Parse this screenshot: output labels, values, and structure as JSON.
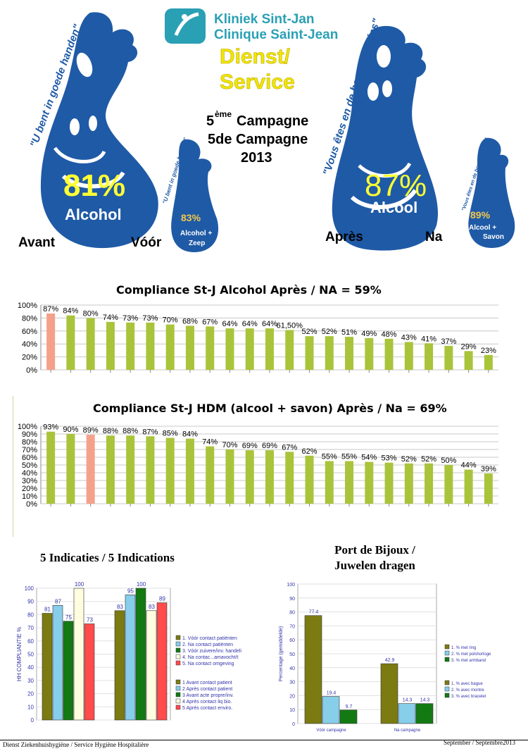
{
  "header": {
    "logo_line1": "Kliniek Sint-Jan",
    "logo_line2": "Clinique Saint-Jean",
    "dienst_line1": "Dienst/",
    "dienst_line2": "Service",
    "campaign_num": "5",
    "campaign_sup": "ème",
    "campaign_line1": "Campagne",
    "campaign_line2": "5de Campagne",
    "campaign_year": "2013"
  },
  "left_drop": {
    "slogan": "\"U bent in goede handen\"",
    "percent": "81%",
    "label": "Alcohol",
    "small_slogan": "\"U bent in goede handen\"",
    "small_percent": "83%",
    "small_label1": "Alcohol +",
    "small_label2": "Zeep",
    "before_fr": "Avant",
    "before_nl": "Vóór"
  },
  "right_drop": {
    "slogan": "\"Vous êtes en de bonnes mains\"",
    "percent": "87%",
    "label": "Alcool",
    "small_slogan": "\"Vous êtes en de bonnes mains\"",
    "small_percent": "89%",
    "small_label1": "Alcool +",
    "small_label2": "Savon",
    "after_fr": "Après",
    "after_nl": "Na"
  },
  "colors": {
    "drop_blue": "#1f5aa6",
    "bar_green": "#a9c43a",
    "bar_salmon": "#f5a08a",
    "yellow_pct": "#ffff33",
    "dienst_yellow": "#f2e600",
    "logo_teal": "#2aa0b5"
  },
  "chart_data": [
    {
      "type": "bar",
      "title": "Compliance St-J Alcohol Après / NA = 59%",
      "values": [
        87,
        84,
        80,
        74,
        73,
        73,
        70,
        68,
        67,
        64,
        64,
        64,
        61.5,
        52,
        52,
        51,
        49,
        48,
        43,
        41,
        37,
        29,
        23
      ],
      "labels": [
        "87%",
        "84%",
        "80%",
        "74%",
        "73%",
        "73%",
        "70%",
        "68%",
        "67%",
        "64%",
        "64%",
        "64%",
        "61,50%",
        "52%",
        "52%",
        "51%",
        "49%",
        "48%",
        "43%",
        "41%",
        "37%",
        "29%",
        "23%"
      ],
      "highlight_index": 0,
      "ylim": [
        0,
        100
      ],
      "yticks": [
        "0%",
        "20%",
        "40%",
        "60%",
        "80%",
        "100%"
      ],
      "grid": true
    },
    {
      "type": "bar",
      "title": "Compliance St-J HDM (alcool + savon) Après / Na = 69%",
      "values": [
        93,
        90,
        89,
        88,
        88,
        87,
        85,
        84,
        74,
        70,
        69,
        69,
        67,
        62,
        55,
        55,
        54,
        53,
        52,
        52,
        50,
        44,
        39
      ],
      "labels": [
        "93%",
        "90%",
        "89%",
        "88%",
        "88%",
        "87%",
        "85%",
        "84%",
        "74%",
        "70%",
        "69%",
        "69%",
        "67%",
        "62%",
        "55%",
        "55%",
        "54%",
        "53%",
        "52%",
        "52%",
        "50%",
        "44%",
        "39%"
      ],
      "highlight_index": 2,
      "ylim": [
        0,
        100
      ],
      "yticks": [
        "0%",
        "10%",
        "20%",
        "30%",
        "40%",
        "50%",
        "60%",
        "70%",
        "80%",
        "90%",
        "100%"
      ],
      "grid": true
    },
    {
      "type": "bar",
      "title": "5 Indicaties / 5 Indications",
      "ylabel": "HH COMPLIANTIE %",
      "ylim": [
        0,
        100
      ],
      "yticks": [
        "0",
        "10",
        "20",
        "30",
        "40",
        "50",
        "60",
        "70",
        "80",
        "90",
        "100"
      ],
      "groups": [
        {
          "values": [
            81,
            87,
            75,
            100,
            73
          ]
        },
        {
          "values": [
            83,
            95,
            100,
            83,
            89
          ]
        }
      ],
      "series_colors": [
        "#7b7b12",
        "#87ceeb",
        "#137a13",
        "#fffde0",
        "#ff4b4b"
      ],
      "legend1": [
        "1. Vóór contact patiënten",
        "2. Na contact patiënten",
        "3. Vóór zuivere/inv. handeli",
        "4. Na contac...amavocht/t",
        "5. Na contact omgeving"
      ],
      "legend2": [
        "1 Avant contact patient",
        "2 Après contact patient",
        "3 Avant acte propre/inv.",
        "4 Après contact liq bio.",
        "5 Après contact enviro."
      ]
    },
    {
      "type": "bar",
      "title": "Port de Bijoux / Juwelen dragen",
      "ylabel": "Percentage (gemiddelde)",
      "ylim": [
        0,
        100
      ],
      "yticks": [
        "0",
        "10",
        "20",
        "30",
        "40",
        "50",
        "60",
        "70",
        "80",
        "90",
        "100"
      ],
      "categories": [
        "Vóór campagne",
        "Na campagne"
      ],
      "groups": [
        {
          "values": [
            77.4,
            19.4,
            9.7
          ],
          "labels": [
            "77.4",
            "19.4",
            "9.7"
          ]
        },
        {
          "values": [
            42.9,
            14.3,
            14.3
          ],
          "labels": [
            "42.9",
            "14.3",
            "14.3"
          ]
        }
      ],
      "series_colors": [
        "#7b7b12",
        "#87ceeb",
        "#137a13"
      ],
      "legend1": [
        "1. % met ring",
        "2. % met polshorloge",
        "3. % met armband"
      ],
      "legend2": [
        "1. % avec bague",
        "2. % avec montre",
        "3. % avec bracelet"
      ]
    }
  ],
  "footer": {
    "left": "Dienst Ziekenhuishygiëne / Service Hygiène Hospitalière",
    "right": "September / Septembre2013"
  }
}
